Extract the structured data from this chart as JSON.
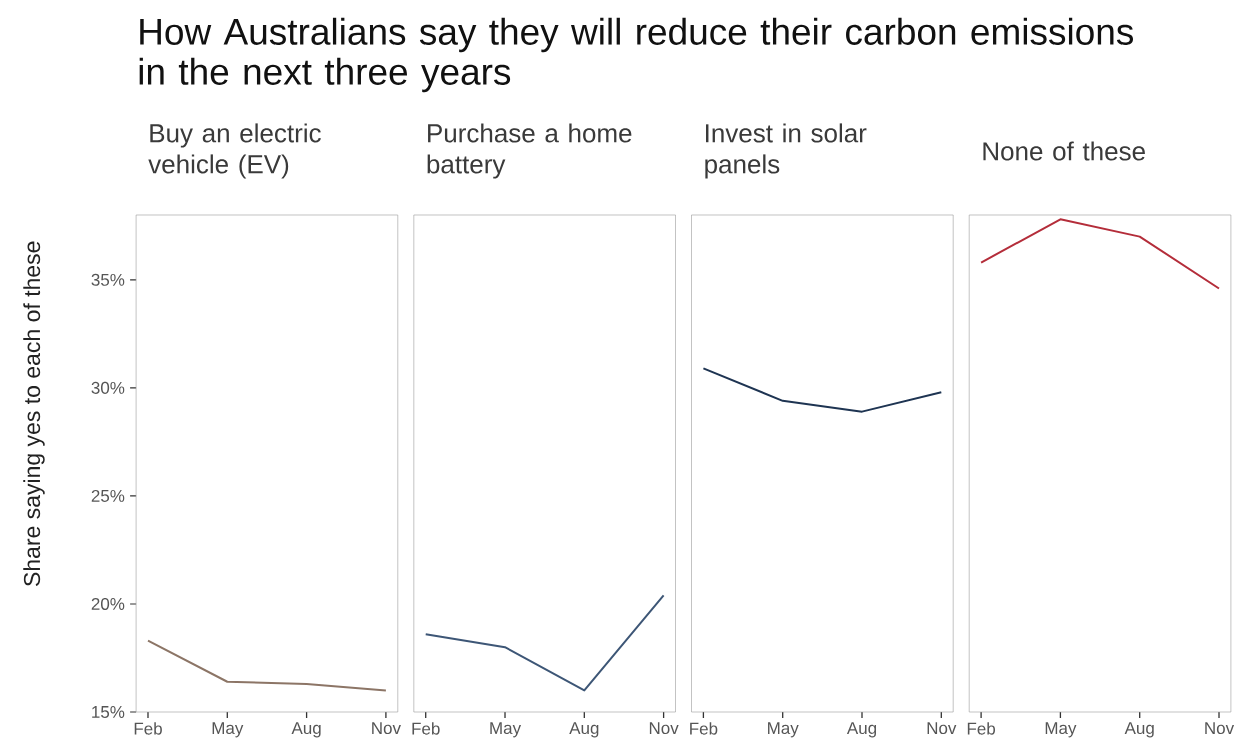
{
  "chart_data": [
    {
      "type": "other",
      "title": "How Australians say they will reduce their carbon emissions in the next three years"
    },
    {
      "type": "line",
      "title": "Buy an electric vehicle (EV)",
      "ylabel": "Share saying yes to each of these",
      "categories": [
        "Feb",
        "May",
        "Aug",
        "Nov"
      ],
      "values": [
        18.3,
        16.4,
        16.3,
        16.0
      ],
      "color": "#8c7566",
      "ylim": [
        15,
        38
      ],
      "yticks": [
        {
          "value": 15,
          "label": "15%"
        },
        {
          "value": 20,
          "label": "20%"
        },
        {
          "value": 25,
          "label": "25%"
        },
        {
          "value": 30,
          "label": "30%"
        },
        {
          "value": 35,
          "label": "35%"
        }
      ]
    },
    {
      "type": "line",
      "title": "Purchase a home battery",
      "categories": [
        "Feb",
        "May",
        "Aug",
        "Nov"
      ],
      "values": [
        18.6,
        18.0,
        16.0,
        20.4
      ],
      "color": "#3d5676",
      "ylim": [
        15,
        38
      ],
      "tick_labels": "x"
    },
    {
      "type": "line",
      "title": "Invest in solar panels",
      "categories": [
        "Feb",
        "May",
        "Aug",
        "Nov"
      ],
      "values": [
        30.9,
        29.4,
        28.9,
        29.8
      ],
      "color": "#1e3452",
      "ylim": [
        15,
        38
      ],
      "tick_labels": "x"
    },
    {
      "type": "line",
      "title": "None of these",
      "categories": [
        "Feb",
        "May",
        "Aug",
        "Nov"
      ],
      "values": [
        35.8,
        37.8,
        37.0,
        34.6
      ],
      "color": "#b42d3a",
      "ylim": [
        15,
        38
      ],
      "tick_labels": "x"
    }
  ]
}
